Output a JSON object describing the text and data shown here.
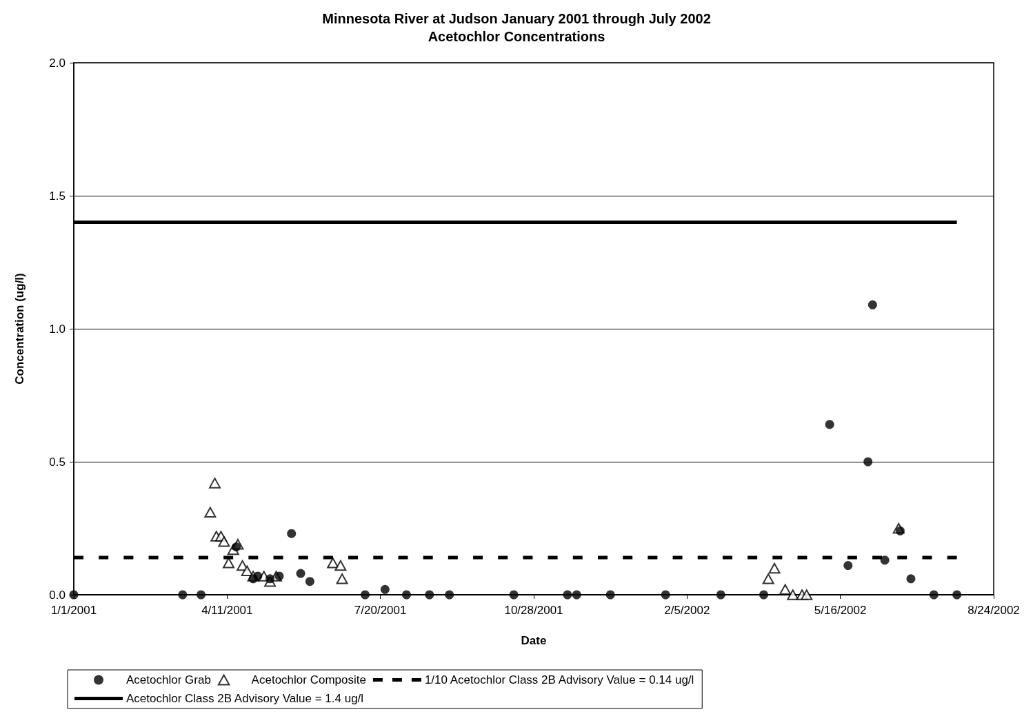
{
  "chart_data": {
    "type": "scatter",
    "title": "Minnesota River at Judson January 2001 through July 2002",
    "subtitle": "Acetochlor Concentrations",
    "xlabel": "Date",
    "ylabel": "Concentration (ug/l)",
    "xlim": [
      "2001-01-01",
      "2002-08-24"
    ],
    "xticks": [
      {
        "value": "2001-01-01",
        "label": "1/1/2001"
      },
      {
        "value": "2001-04-11",
        "label": "4/11/2001"
      },
      {
        "value": "2001-07-20",
        "label": "7/20/2001"
      },
      {
        "value": "2001-10-28",
        "label": "10/28/2001"
      },
      {
        "value": "2002-02-05",
        "label": "2/5/2002"
      },
      {
        "value": "2002-05-16",
        "label": "5/16/2002"
      },
      {
        "value": "2002-08-24",
        "label": "8/24/2002"
      }
    ],
    "ylim": [
      0,
      2
    ],
    "yticks": [
      {
        "value": 0,
        "label": "0.0"
      },
      0.5,
      {
        "value": 1,
        "label": "1.0"
      },
      1.5,
      {
        "value": 2,
        "label": "2.0"
      }
    ],
    "grid": "y",
    "legend": "bottom",
    "series": [
      {
        "name": "Acetochlor Grab",
        "type": "scatter",
        "marker": "circle",
        "color": "#000000",
        "x": [
          "2001-01-01",
          "2001-03-13",
          "2001-03-25",
          "2001-04-17",
          "2001-04-28",
          "2001-05-01",
          "2001-05-09",
          "2001-05-15",
          "2001-05-23",
          "2001-05-29",
          "2001-06-04",
          "2001-07-10",
          "2001-07-23",
          "2001-08-06",
          "2001-08-21",
          "2001-09-03",
          "2001-10-15",
          "2001-11-19",
          "2001-11-25",
          "2001-12-17",
          "2002-01-22",
          "2002-02-27",
          "2002-03-27",
          "2002-05-09",
          "2002-05-21",
          "2002-06-03",
          "2002-06-06",
          "2002-06-14",
          "2002-06-24",
          "2002-07-01",
          "2002-07-16",
          "2002-07-31"
        ],
        "values": [
          0,
          0,
          0,
          0.18,
          0.06,
          0.07,
          0.06,
          0.07,
          0.23,
          0.08,
          0.05,
          0,
          0.02,
          0,
          0,
          0,
          0,
          0,
          0,
          0,
          0,
          0,
          0,
          0.64,
          0.11,
          0.5,
          1.09,
          0.13,
          0.24,
          0.06,
          0,
          0
        ]
      },
      {
        "name": "Acetochlor Composite",
        "type": "scatter",
        "marker": "triangle",
        "color": "#000000",
        "x": [
          "2001-03-31",
          "2001-04-03",
          "2001-04-04",
          "2001-04-07",
          "2001-04-09",
          "2001-04-12",
          "2001-04-15",
          "2001-04-18",
          "2001-04-21",
          "2001-04-24",
          "2001-04-28",
          "2001-05-05",
          "2001-05-09",
          "2001-05-13",
          "2001-06-19",
          "2001-06-24",
          "2001-06-25",
          "2002-03-30",
          "2002-04-03",
          "2002-04-10",
          "2002-04-15",
          "2002-04-21",
          "2002-04-24",
          "2002-06-23"
        ],
        "values": [
          0.31,
          0.42,
          0.22,
          0.22,
          0.2,
          0.12,
          0.17,
          0.19,
          0.11,
          0.09,
          0.07,
          0.07,
          0.05,
          0.07,
          0.12,
          0.11,
          0.06,
          0.06,
          0.1,
          0.02,
          0,
          0,
          0,
          0.25
        ]
      },
      {
        "name": "1/10 Acetochlor Class 2B Advisory Value = 0.14 ug/l",
        "type": "line",
        "marker": "none",
        "line_style": "dashed",
        "color": "#000000",
        "x": [
          "2001-01-01",
          "2002-07-31"
        ],
        "values": [
          0.14,
          0.14
        ]
      },
      {
        "name": "Acetochlor Class 2B Advisory Value = 1.4 ug/l",
        "type": "line",
        "marker": "none",
        "line_style": "solid",
        "color": "#000000",
        "x": [
          "2001-01-01",
          "2002-07-31"
        ],
        "values": [
          1.4,
          1.4
        ]
      }
    ]
  }
}
